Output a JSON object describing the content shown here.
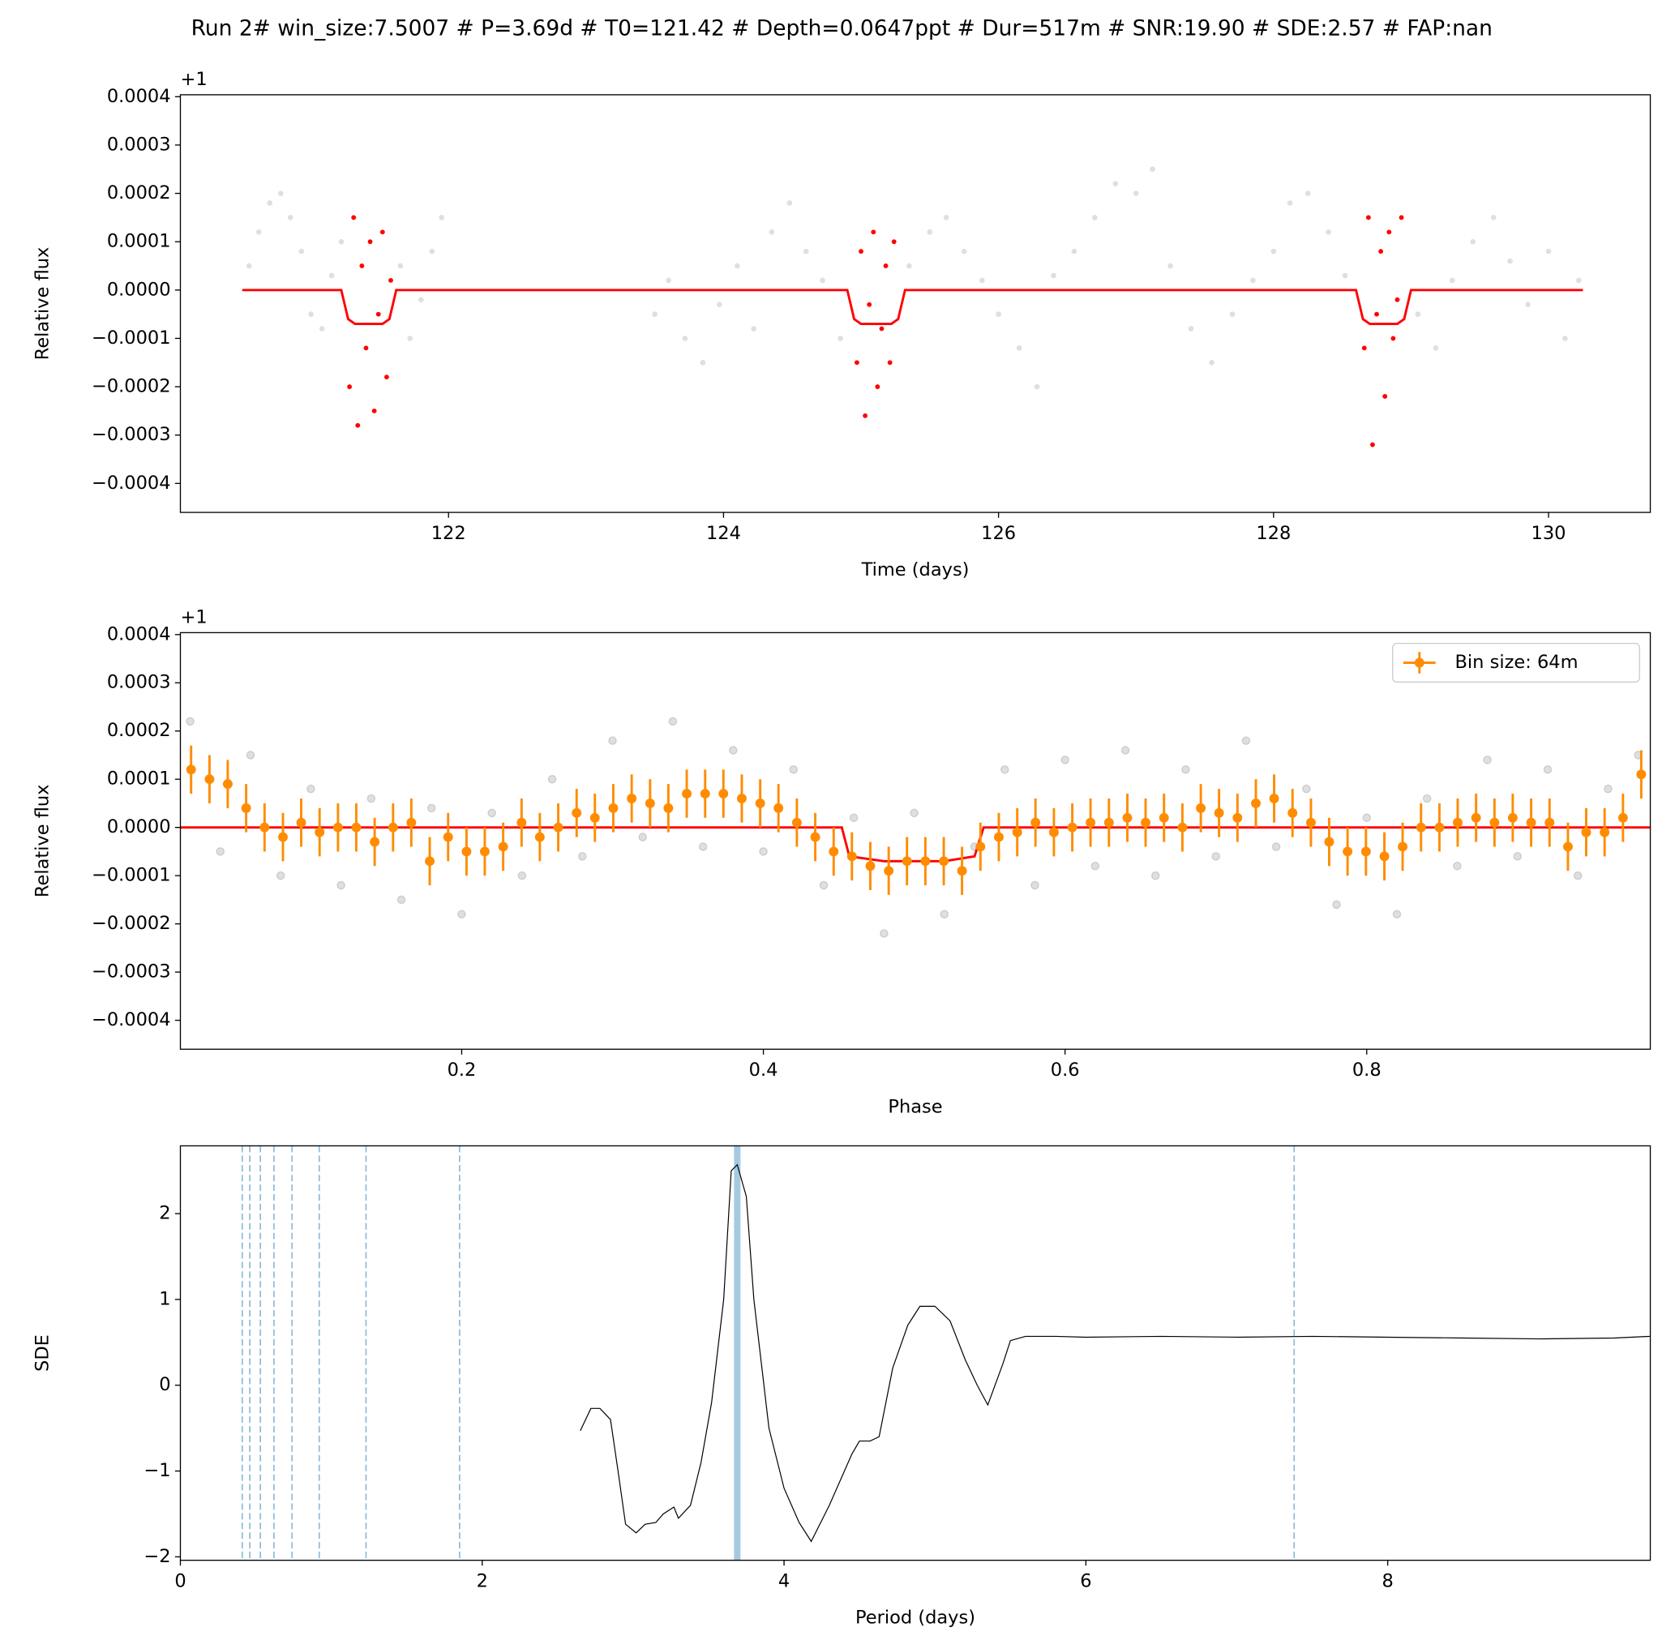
{
  "chart_data": [
    {
      "type": "scatter",
      "title": "Run 2# win_size:7.5007 # P=3.69d # T0=121.42 # Depth=0.0647ppt # Dur=517m # SNR:19.90 # SDE:2.57 # FAP:nan",
      "xlabel": "Time (days)",
      "ylabel": "Relative flux",
      "offset_text": "+1",
      "xlim": [
        120.05,
        130.74
      ],
      "ylim": [
        -0.00046,
        0.000404
      ],
      "xticks": [
        122,
        124,
        126,
        128,
        130
      ],
      "yticks": [
        {
          "value": -0.0004,
          "label": "−0.0004"
        },
        {
          "value": -0.0003,
          "label": "−0.0003"
        },
        {
          "value": -0.0002,
          "label": "−0.0002"
        },
        {
          "value": -0.0001,
          "label": "−0.0001"
        },
        {
          "value": 0,
          "label": "0.0000"
        },
        0.0001,
        0.0002,
        0.0003,
        0.0004
      ],
      "series": [
        {
          "style": "points",
          "color": "#808080",
          "x": [
            120.55,
            120.62,
            120.7,
            120.78,
            120.85,
            120.93,
            121.0,
            121.08,
            121.15,
            121.22,
            121.65,
            121.72,
            121.8,
            121.88,
            121.95,
            123.5,
            123.6,
            123.72,
            123.85,
            123.97,
            124.1,
            124.22,
            124.35,
            124.48,
            124.6,
            124.72,
            124.85,
            125.35,
            125.5,
            125.62,
            125.75,
            125.88,
            126.0,
            126.15,
            126.28,
            126.4,
            126.55,
            126.7,
            126.85,
            127.0,
            127.12,
            127.25,
            127.4,
            127.55,
            127.7,
            127.85,
            128.0,
            128.12,
            128.25,
            128.4,
            128.52,
            129.05,
            129.18,
            129.3,
            129.45,
            129.6,
            129.72,
            129.85,
            130.0,
            130.12,
            130.22
          ],
          "y": [
            5e-05,
            0.00012,
            0.00018,
            0.0002,
            0.00015,
            8e-05,
            -5e-05,
            -8e-05,
            3e-05,
            0.0001,
            5e-05,
            -0.0001,
            -2e-05,
            8e-05,
            0.00015,
            -5e-05,
            2e-05,
            -0.0001,
            -0.00015,
            -3e-05,
            5e-05,
            -8e-05,
            0.00012,
            0.00018,
            8e-05,
            2e-05,
            -0.0001,
            5e-05,
            0.00012,
            0.00015,
            8e-05,
            2e-05,
            -5e-05,
            -0.00012,
            -0.0002,
            3e-05,
            8e-05,
            0.00015,
            0.00022,
            0.0002,
            0.00025,
            5e-05,
            -8e-05,
            -0.00015,
            -5e-05,
            2e-05,
            8e-05,
            0.00018,
            0.0002,
            0.00012,
            3e-05,
            -5e-05,
            -0.00012,
            2e-05,
            0.0001,
            0.00015,
            6e-05,
            -3e-05,
            8e-05,
            -0.0001,
            2e-05
          ]
        },
        {
          "style": "points",
          "color": "#ff0000",
          "x": [
            121.28,
            121.31,
            121.34,
            121.37,
            121.4,
            121.43,
            121.46,
            121.49,
            121.52,
            121.55,
            121.58,
            124.97,
            125.0,
            125.03,
            125.06,
            125.09,
            125.12,
            125.15,
            125.18,
            125.21,
            125.24,
            128.66,
            128.69,
            128.72,
            128.75,
            128.78,
            128.81,
            128.84,
            128.87,
            128.9,
            128.93
          ],
          "y": [
            -0.0002,
            0.00015,
            -0.00028,
            5e-05,
            -0.00012,
            0.0001,
            -0.00025,
            -5e-05,
            0.00012,
            -0.00018,
            2e-05,
            -0.00015,
            8e-05,
            -0.00026,
            -3e-05,
            0.00012,
            -0.0002,
            -8e-05,
            5e-05,
            -0.00015,
            0.0001,
            -0.00012,
            0.00015,
            -0.00032,
            -5e-05,
            8e-05,
            -0.00022,
            0.00012,
            -0.0001,
            -2e-05,
            0.00015
          ]
        },
        {
          "style": "line",
          "color": "#ff0000",
          "x": [
            120.5,
            121.22,
            121.27,
            121.32,
            121.52,
            121.57,
            121.62,
            124.9,
            124.95,
            125.0,
            125.22,
            125.27,
            125.32,
            128.6,
            128.65,
            128.7,
            128.9,
            128.95,
            129.0,
            130.25
          ],
          "y": [
            0,
            0,
            -6e-05,
            -7e-05,
            -7e-05,
            -6e-05,
            0,
            0,
            -6e-05,
            -7e-05,
            -7e-05,
            -6e-05,
            0,
            0,
            -6e-05,
            -7e-05,
            -7e-05,
            -6e-05,
            0,
            0
          ]
        }
      ]
    },
    {
      "type": "scatter",
      "xlabel": "Phase",
      "ylabel": "Relative flux",
      "offset_text": "+1",
      "xlim": [
        0.0135,
        0.988
      ],
      "ylim": [
        -0.00046,
        0.000404
      ],
      "xticks": [
        0.2,
        0.4,
        0.6,
        0.8
      ],
      "yticks": [
        {
          "value": -0.0004,
          "label": "−0.0004"
        },
        {
          "value": -0.0003,
          "label": "−0.0003"
        },
        {
          "value": -0.0002,
          "label": "−0.0002"
        },
        {
          "value": -0.0001,
          "label": "−0.0001"
        },
        {
          "value": 0,
          "label": "0.0000"
        },
        0.0001,
        0.0002,
        0.0003,
        0.0004
      ],
      "legend": "upper right",
      "series": [
        {
          "style": "points",
          "color": "#808080",
          "x": [
            0.02,
            0.04,
            0.06,
            0.08,
            0.1,
            0.12,
            0.14,
            0.16,
            0.18,
            0.2,
            0.22,
            0.24,
            0.26,
            0.28,
            0.3,
            0.32,
            0.34,
            0.36,
            0.38,
            0.4,
            0.42,
            0.44,
            0.46,
            0.48,
            0.5,
            0.52,
            0.54,
            0.56,
            0.58,
            0.6,
            0.62,
            0.64,
            0.66,
            0.68,
            0.7,
            0.72,
            0.74,
            0.76,
            0.78,
            0.8,
            0.82,
            0.84,
            0.86,
            0.88,
            0.9,
            0.92,
            0.94,
            0.96,
            0.98
          ],
          "y": [
            0.00022,
            -5e-05,
            0.00015,
            -0.0001,
            8e-05,
            -0.00012,
            6e-05,
            -0.00015,
            4e-05,
            -0.00018,
            3e-05,
            -0.0001,
            0.0001,
            -6e-05,
            0.00018,
            -2e-05,
            0.00022,
            -4e-05,
            0.00016,
            -5e-05,
            0.00012,
            -0.00012,
            2e-05,
            -0.00022,
            3e-05,
            -0.00018,
            -4e-05,
            0.00012,
            -0.00012,
            0.00014,
            -8e-05,
            0.00016,
            -0.0001,
            0.00012,
            -6e-05,
            0.00018,
            -4e-05,
            8e-05,
            -0.00016,
            2e-05,
            -0.00018,
            6e-05,
            -8e-05,
            0.00014,
            -6e-05,
            0.00012,
            -0.0001,
            8e-05,
            0.00015
          ]
        },
        {
          "style": "line",
          "color": "#ff0000",
          "x": [
            0.0135,
            0.452,
            0.457,
            0.48,
            0.52,
            0.54,
            0.546,
            0.988
          ],
          "y": [
            0,
            0,
            -6e-05,
            -7e-05,
            -7e-05,
            -6e-05,
            0,
            0
          ]
        },
        {
          "style": "errorbar",
          "color": "#ff8c00",
          "name": "Bin size: 64m",
          "x": [
            0.0206,
            0.0328,
            0.0449,
            0.0571,
            0.0693,
            0.0815,
            0.0936,
            0.1058,
            0.118,
            0.1301,
            0.1423,
            0.1545,
            0.1666,
            0.1788,
            0.191,
            0.2032,
            0.2153,
            0.2275,
            0.2397,
            0.2518,
            0.264,
            0.2762,
            0.2883,
            0.3005,
            0.3127,
            0.3249,
            0.337,
            0.3492,
            0.3614,
            0.3735,
            0.3857,
            0.3979,
            0.41,
            0.4222,
            0.4344,
            0.4466,
            0.4587,
            0.4709,
            0.4831,
            0.4952,
            0.5074,
            0.5196,
            0.5317,
            0.5439,
            0.5561,
            0.5683,
            0.5804,
            0.5926,
            0.6048,
            0.6169,
            0.6291,
            0.6413,
            0.6534,
            0.6656,
            0.6778,
            0.69,
            0.7021,
            0.7143,
            0.7265,
            0.7386,
            0.7508,
            0.763,
            0.7751,
            0.7873,
            0.7995,
            0.8117,
            0.8238,
            0.836,
            0.8482,
            0.8603,
            0.8725,
            0.8847,
            0.8968,
            0.909,
            0.9212,
            0.9334,
            0.9455,
            0.9577,
            0.9699,
            0.982
          ],
          "y": [
            0.00012,
            0.0001,
            9e-05,
            4e-05,
            0,
            -2e-05,
            1e-05,
            -1e-05,
            0,
            0,
            -3e-05,
            0,
            1e-05,
            -7e-05,
            -2e-05,
            -5e-05,
            -5e-05,
            -4e-05,
            1e-05,
            -2e-05,
            0,
            3e-05,
            2e-05,
            4e-05,
            6e-05,
            5e-05,
            4e-05,
            7e-05,
            7e-05,
            7e-05,
            6e-05,
            5e-05,
            4e-05,
            1e-05,
            -2e-05,
            -5e-05,
            -6e-05,
            -8e-05,
            -9e-05,
            -7e-05,
            -7e-05,
            -7e-05,
            -9e-05,
            -4e-05,
            -2e-05,
            -1e-05,
            1e-05,
            -1e-05,
            0,
            1e-05,
            1e-05,
            2e-05,
            1e-05,
            2e-05,
            0,
            4e-05,
            3e-05,
            2e-05,
            5e-05,
            6e-05,
            3e-05,
            1e-05,
            -3e-05,
            -5e-05,
            -5e-05,
            -6e-05,
            -4e-05,
            0,
            0,
            1e-05,
            2e-05,
            1e-05,
            2e-05,
            1e-05,
            1e-05,
            -4e-05,
            -1e-05,
            -1e-05,
            2e-05,
            0.00011
          ],
          "yerr": [
            5e-05,
            5e-05,
            5e-05,
            5e-05,
            5e-05,
            5e-05,
            5e-05,
            5e-05,
            5e-05,
            5e-05,
            5e-05,
            5e-05,
            5e-05,
            5e-05,
            5e-05,
            5e-05,
            5e-05,
            5e-05,
            5e-05,
            5e-05,
            5e-05,
            5e-05,
            5e-05,
            5e-05,
            5e-05,
            5e-05,
            5e-05,
            5e-05,
            5e-05,
            5e-05,
            5e-05,
            5e-05,
            5e-05,
            5e-05,
            5e-05,
            5e-05,
            5e-05,
            5e-05,
            5e-05,
            5e-05,
            5e-05,
            5e-05,
            5e-05,
            5e-05,
            5e-05,
            5e-05,
            5e-05,
            5e-05,
            5e-05,
            5e-05,
            5e-05,
            5e-05,
            5e-05,
            5e-05,
            5e-05,
            5e-05,
            5e-05,
            5e-05,
            5e-05,
            5e-05,
            5e-05,
            5e-05,
            5e-05,
            5e-05,
            5e-05,
            5e-05,
            5e-05,
            5e-05,
            5e-05,
            5e-05,
            5e-05,
            5e-05,
            5e-05,
            5e-05,
            5e-05,
            5e-05,
            5e-05,
            5e-05,
            5e-05,
            5e-05
          ]
        }
      ]
    },
    {
      "type": "line",
      "xlabel": "Period (days)",
      "ylabel": "SDE",
      "xlim": [
        0,
        9.74
      ],
      "ylim": [
        -2.04,
        2.79
      ],
      "xticks": [
        0,
        2,
        4,
        6,
        8
      ],
      "yticks": [
        {
          "value": -2,
          "label": "−2"
        },
        {
          "value": -1,
          "label": "−1"
        },
        0,
        1,
        2
      ],
      "peak_period": 3.69,
      "harmonics": [
        0.41,
        0.46,
        0.53,
        0.62,
        0.74,
        0.92,
        1.23,
        1.85,
        7.38
      ],
      "vline_color": "#1f77b4",
      "series": [
        {
          "style": "line",
          "color": "#000000",
          "x": [
            2.65,
            2.72,
            2.78,
            2.85,
            2.9,
            2.95,
            3.02,
            3.08,
            3.15,
            3.2,
            3.27,
            3.3,
            3.38,
            3.45,
            3.52,
            3.6,
            3.65,
            3.69,
            3.75,
            3.8,
            3.9,
            4.0,
            4.1,
            4.18,
            4.3,
            4.45,
            4.5,
            4.57,
            4.63,
            4.72,
            4.82,
            4.9,
            5.0,
            5.1,
            5.2,
            5.28,
            5.35,
            5.45,
            5.5,
            5.6,
            5.8,
            6.0,
            6.5,
            7.0,
            7.5,
            8.0,
            8.5,
            9.0,
            9.5,
            9.74
          ],
          "y": [
            -0.53,
            -0.27,
            -0.27,
            -0.4,
            -1.0,
            -1.62,
            -1.72,
            -1.62,
            -1.6,
            -1.5,
            -1.42,
            -1.55,
            -1.4,
            -0.9,
            -0.2,
            1.0,
            2.5,
            2.57,
            2.2,
            1.0,
            -0.5,
            -1.2,
            -1.6,
            -1.82,
            -1.4,
            -0.8,
            -0.65,
            -0.65,
            -0.6,
            0.2,
            0.7,
            0.92,
            0.92,
            0.75,
            0.3,
            0.0,
            -0.23,
            0.25,
            0.52,
            0.57,
            0.57,
            0.56,
            0.57,
            0.56,
            0.57,
            0.56,
            0.55,
            0.54,
            0.55,
            0.57
          ]
        }
      ]
    }
  ]
}
